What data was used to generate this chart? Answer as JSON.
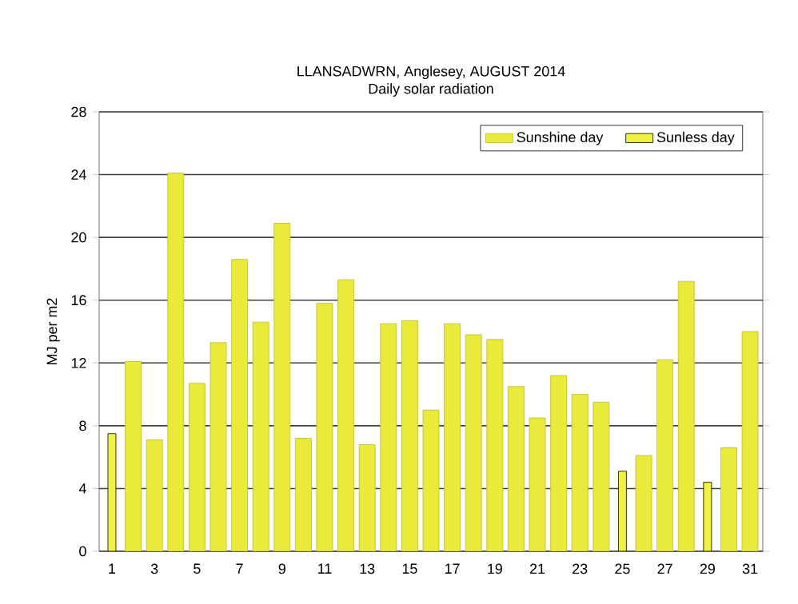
{
  "chart_data": {
    "type": "bar",
    "title": "LLANSADWRN, Anglesey, AUGUST 2014",
    "subtitle": "Daily solar radiation",
    "ylabel": "MJ per m2",
    "categories": [
      "1",
      null,
      "3",
      null,
      "5",
      null,
      "7",
      null,
      "9",
      null,
      "11",
      null,
      "13",
      null,
      "15",
      null,
      "17",
      null,
      "19",
      null,
      "21",
      null,
      "23",
      null,
      "25",
      null,
      "27",
      null,
      "29",
      null,
      "31"
    ],
    "series": [
      {
        "name": "Sunshine day",
        "color": "#eaea3a",
        "values": [
          null,
          12.1,
          7.1,
          24.1,
          10.7,
          13.3,
          18.6,
          14.6,
          20.9,
          7.2,
          15.8,
          17.3,
          6.8,
          14.5,
          14.7,
          9.0,
          14.5,
          13.8,
          13.5,
          10.5,
          8.5,
          11.2,
          10.0,
          9.5,
          null,
          6.1,
          12.2,
          17.2,
          null,
          6.6,
          14.0
        ]
      },
      {
        "name": "Sunless day",
        "color": "#f0f040",
        "values": [
          7.5,
          null,
          null,
          null,
          null,
          null,
          null,
          null,
          null,
          null,
          null,
          null,
          null,
          null,
          null,
          null,
          null,
          null,
          null,
          null,
          null,
          null,
          null,
          null,
          5.1,
          null,
          null,
          null,
          4.4,
          null,
          null
        ]
      }
    ],
    "ylim": [
      0,
      28
    ],
    "yticks": [
      0,
      4,
      8,
      12,
      16,
      20,
      24,
      28
    ],
    "grid": "y",
    "legend": "top right"
  }
}
